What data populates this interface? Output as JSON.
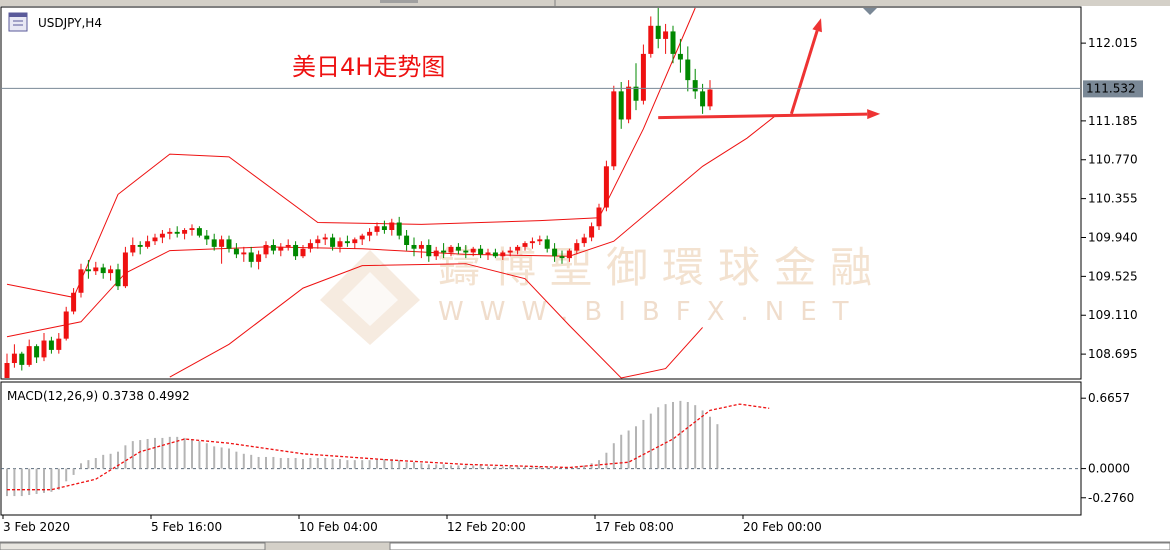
{
  "symbol_label": "USDJPY,H4",
  "annotation": "美日4H走势图",
  "watermark": {
    "cn": "鑄博聖御環球金融",
    "en": "WWW.BIBFX.NET"
  },
  "colors": {
    "bull": "#ee1111",
    "bear": "#008800",
    "band": "#ee1111",
    "hist": "#b4b4b4",
    "signal": "#ee1111",
    "grid": "#000000"
  },
  "chart_data": {
    "type": "candlestick",
    "price_axis": {
      "ticks": [
        "112.015",
        "111.185",
        "110.770",
        "110.355",
        "109.940",
        "109.525",
        "109.110",
        "108.695"
      ],
      "ylim": [
        108.44,
        112.39
      ]
    },
    "current_price": "111.532",
    "time_labels": [
      "3 Feb 2020",
      "5 Feb 16:00",
      "10 Feb 04:00",
      "12 Feb 20:00",
      "17 Feb 08:00",
      "20 Feb 00:00"
    ],
    "time_label_bars": [
      0,
      20,
      40,
      60,
      80,
      100
    ],
    "candles": [
      [
        108.42,
        108.7,
        108.4,
        108.6
      ],
      [
        108.6,
        108.8,
        108.55,
        108.7
      ],
      [
        108.7,
        108.72,
        108.52,
        108.58
      ],
      [
        108.58,
        108.85,
        108.56,
        108.78
      ],
      [
        108.78,
        108.8,
        108.6,
        108.66
      ],
      [
        108.66,
        108.92,
        108.62,
        108.84
      ],
      [
        108.84,
        108.88,
        108.7,
        108.74
      ],
      [
        108.74,
        108.92,
        108.7,
        108.86
      ],
      [
        108.86,
        109.2,
        108.84,
        109.15
      ],
      [
        109.15,
        109.4,
        109.12,
        109.35
      ],
      [
        109.35,
        109.66,
        109.3,
        109.6
      ],
      [
        109.6,
        109.7,
        109.5,
        109.58
      ],
      [
        109.58,
        109.68,
        109.54,
        109.62
      ],
      [
        109.62,
        109.66,
        109.5,
        109.56
      ],
      [
        109.56,
        109.64,
        109.48,
        109.6
      ],
      [
        109.6,
        109.66,
        109.38,
        109.42
      ],
      [
        109.42,
        109.84,
        109.4,
        109.78
      ],
      [
        109.78,
        109.94,
        109.74,
        109.86
      ],
      [
        109.86,
        109.9,
        109.76,
        109.84
      ],
      [
        109.84,
        109.96,
        109.82,
        109.9
      ],
      [
        109.9,
        109.98,
        109.86,
        109.94
      ],
      [
        109.94,
        110.02,
        109.88,
        109.98
      ],
      [
        109.98,
        110.04,
        109.92,
        110.0
      ],
      [
        110.0,
        110.06,
        109.94,
        109.98
      ],
      [
        109.98,
        110.04,
        109.92,
        110.02
      ],
      [
        110.02,
        110.08,
        109.96,
        110.04
      ],
      [
        110.04,
        110.06,
        109.94,
        109.96
      ],
      [
        109.96,
        110.02,
        109.86,
        109.92
      ],
      [
        109.92,
        109.98,
        109.8,
        109.84
      ],
      [
        109.84,
        109.96,
        109.66,
        109.92
      ],
      [
        109.92,
        109.96,
        109.78,
        109.82
      ],
      [
        109.82,
        109.88,
        109.72,
        109.76
      ],
      [
        109.76,
        109.84,
        109.68,
        109.78
      ],
      [
        109.78,
        109.84,
        109.62,
        109.68
      ],
      [
        109.68,
        109.8,
        109.6,
        109.76
      ],
      [
        109.76,
        109.9,
        109.72,
        109.86
      ],
      [
        109.86,
        109.92,
        109.76,
        109.8
      ],
      [
        109.8,
        109.88,
        109.74,
        109.84
      ],
      [
        109.84,
        109.92,
        109.8,
        109.86
      ],
      [
        109.86,
        109.9,
        109.7,
        109.74
      ],
      [
        109.74,
        109.86,
        109.72,
        109.82
      ],
      [
        109.82,
        109.92,
        109.78,
        109.88
      ],
      [
        109.88,
        109.96,
        109.82,
        109.92
      ],
      [
        109.92,
        109.98,
        109.86,
        109.94
      ],
      [
        109.94,
        109.98,
        109.8,
        109.84
      ],
      [
        109.84,
        109.94,
        109.78,
        109.9
      ],
      [
        109.9,
        109.96,
        109.84,
        109.88
      ],
      [
        109.88,
        109.94,
        109.82,
        109.92
      ],
      [
        109.92,
        109.98,
        109.86,
        109.96
      ],
      [
        109.96,
        110.04,
        109.9,
        110.0
      ],
      [
        110.0,
        110.1,
        109.96,
        110.06
      ],
      [
        110.06,
        110.12,
        109.98,
        110.02
      ],
      [
        110.02,
        110.14,
        109.96,
        110.1
      ],
      [
        110.1,
        110.16,
        109.92,
        109.96
      ],
      [
        109.96,
        110.02,
        109.8,
        109.86
      ],
      [
        109.86,
        109.94,
        109.74,
        109.82
      ],
      [
        109.82,
        109.9,
        109.72,
        109.86
      ],
      [
        109.86,
        109.92,
        109.68,
        109.74
      ],
      [
        109.74,
        109.84,
        109.7,
        109.8
      ],
      [
        109.8,
        109.88,
        109.72,
        109.78
      ],
      [
        109.78,
        109.86,
        109.74,
        109.84
      ],
      [
        109.84,
        109.88,
        109.76,
        109.8
      ],
      [
        109.8,
        109.86,
        109.72,
        109.78
      ],
      [
        109.78,
        109.84,
        109.74,
        109.82
      ],
      [
        109.82,
        109.86,
        109.72,
        109.76
      ],
      [
        109.76,
        109.82,
        109.7,
        109.78
      ],
      [
        109.78,
        109.82,
        109.72,
        109.74
      ],
      [
        109.74,
        109.8,
        109.7,
        109.78
      ],
      [
        109.78,
        109.84,
        109.74,
        109.8
      ],
      [
        109.8,
        109.86,
        109.76,
        109.84
      ],
      [
        109.84,
        109.9,
        109.8,
        109.88
      ],
      [
        109.88,
        109.94,
        109.82,
        109.9
      ],
      [
        109.9,
        109.96,
        109.86,
        109.92
      ],
      [
        109.92,
        109.96,
        109.78,
        109.82
      ],
      [
        109.82,
        109.88,
        109.68,
        109.74
      ],
      [
        109.74,
        109.8,
        109.66,
        109.72
      ],
      [
        109.72,
        109.82,
        109.68,
        109.8
      ],
      [
        109.8,
        109.92,
        109.76,
        109.88
      ],
      [
        109.88,
        109.98,
        109.84,
        109.94
      ],
      [
        109.94,
        110.1,
        109.9,
        110.06
      ],
      [
        110.06,
        110.3,
        110.02,
        110.26
      ],
      [
        110.26,
        110.76,
        110.22,
        110.7
      ],
      [
        110.7,
        111.56,
        110.66,
        111.5
      ],
      [
        111.5,
        111.6,
        111.1,
        111.2
      ],
      [
        111.2,
        111.62,
        111.16,
        111.55
      ],
      [
        111.55,
        111.8,
        111.3,
        111.4
      ],
      [
        111.4,
        112.0,
        111.36,
        111.9
      ],
      [
        111.9,
        112.3,
        111.86,
        112.2
      ],
      [
        112.2,
        112.4,
        111.96,
        112.06
      ],
      [
        112.06,
        112.22,
        111.9,
        112.14
      ],
      [
        112.14,
        112.2,
        111.8,
        111.9
      ],
      [
        111.9,
        112.06,
        111.7,
        111.84
      ],
      [
        111.84,
        111.98,
        111.5,
        111.62
      ],
      [
        111.62,
        111.74,
        111.42,
        111.5
      ],
      [
        111.5,
        111.58,
        111.26,
        111.34
      ],
      [
        111.34,
        111.62,
        111.3,
        111.52
      ]
    ],
    "bollinger": {
      "upper": [
        [
          0,
          109.44
        ],
        [
          9,
          109.3
        ],
        [
          15,
          110.4
        ],
        [
          22,
          110.83
        ],
        [
          30,
          110.8
        ],
        [
          42,
          110.1
        ],
        [
          56,
          110.08
        ],
        [
          72,
          110.12
        ],
        [
          80,
          110.15
        ],
        [
          86,
          111.1
        ],
        [
          93,
          112.4
        ]
      ],
      "middle": [
        [
          0,
          108.88
        ],
        [
          10,
          109.04
        ],
        [
          16,
          109.56
        ],
        [
          22,
          109.8
        ],
        [
          35,
          109.84
        ],
        [
          48,
          109.82
        ],
        [
          62,
          109.76
        ],
        [
          76,
          109.74
        ],
        [
          82,
          109.9
        ],
        [
          88,
          110.3
        ],
        [
          94,
          110.7
        ],
        [
          100,
          111.0
        ],
        [
          104,
          111.25
        ]
      ],
      "lower": [
        [
          22,
          108.45
        ],
        [
          30,
          108.8
        ],
        [
          40,
          109.4
        ],
        [
          48,
          109.64
        ],
        [
          62,
          109.66
        ],
        [
          70,
          109.5
        ],
        [
          76,
          109.0
        ],
        [
          83,
          108.4
        ],
        [
          89,
          108.54
        ],
        [
          94,
          108.98
        ]
      ]
    },
    "arrows": [
      {
        "from_bar": 88,
        "from_price": 111.22,
        "to_bar": 118,
        "to_price": 111.26
      },
      {
        "from_bar": 106,
        "from_price": 111.26,
        "to_bar": 110,
        "to_price": 112.28
      }
    ],
    "macd": {
      "label": "MACD(12,26,9) 0.3738 0.4992",
      "ticks": [
        "0.6657",
        "0.0000",
        "-0.2760"
      ],
      "ylim": [
        -0.42,
        0.8
      ],
      "hist": [
        -0.26,
        -0.26,
        -0.26,
        -0.25,
        -0.24,
        -0.23,
        -0.22,
        -0.2,
        -0.12,
        -0.06,
        0.05,
        0.08,
        0.1,
        0.13,
        0.14,
        0.16,
        0.22,
        0.26,
        0.27,
        0.28,
        0.29,
        0.29,
        0.3,
        0.3,
        0.29,
        0.28,
        0.26,
        0.24,
        0.21,
        0.2,
        0.19,
        0.16,
        0.14,
        0.13,
        0.11,
        0.11,
        0.11,
        0.1,
        0.1,
        0.1,
        0.09,
        0.1,
        0.1,
        0.1,
        0.09,
        0.09,
        0.08,
        0.08,
        0.08,
        0.08,
        0.09,
        0.09,
        0.09,
        0.08,
        0.06,
        0.06,
        0.05,
        0.04,
        0.04,
        0.04,
        0.03,
        0.03,
        0.03,
        0.03,
        0.03,
        0.02,
        0.02,
        0.02,
        0.02,
        0.02,
        0.02,
        0.02,
        0.02,
        0.02,
        0.01,
        0.0,
        0.0,
        0.02,
        0.03,
        0.05,
        0.08,
        0.15,
        0.24,
        0.32,
        0.36,
        0.4,
        0.46,
        0.52,
        0.58,
        0.61,
        0.63,
        0.64,
        0.63,
        0.6,
        0.55,
        0.49,
        0.42
      ],
      "signal": [
        [
          0,
          -0.2
        ],
        [
          6,
          -0.2
        ],
        [
          12,
          -0.1
        ],
        [
          18,
          0.16
        ],
        [
          24,
          0.28
        ],
        [
          30,
          0.24
        ],
        [
          40,
          0.14
        ],
        [
          52,
          0.08
        ],
        [
          62,
          0.04
        ],
        [
          76,
          0.01
        ],
        [
          84,
          0.06
        ],
        [
          90,
          0.28
        ],
        [
          95,
          0.55
        ],
        [
          99,
          0.61
        ],
        [
          103,
          0.57
        ]
      ]
    }
  }
}
